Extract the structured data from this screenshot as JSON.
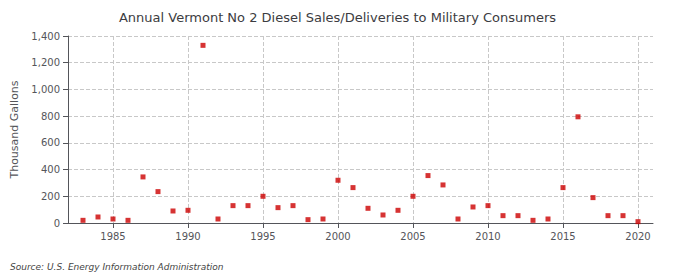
{
  "chart_data": {
    "type": "scatter",
    "title": "Annual Vermont No 2 Diesel Sales/Deliveries to Military Consumers",
    "ylabel": "Thousand Gallons",
    "annotations": [
      "Source: U.S. Energy Information Administration"
    ],
    "x": [
      1983,
      1984,
      1985,
      1986,
      1987,
      1988,
      1989,
      1990,
      1991,
      1992,
      1993,
      1994,
      1995,
      1996,
      1997,
      1998,
      1999,
      2000,
      2001,
      2002,
      2003,
      2004,
      2005,
      2006,
      2007,
      2008,
      2009,
      2010,
      2011,
      2012,
      2013,
      2014,
      2015,
      2016,
      2017,
      2018,
      2019,
      2020
    ],
    "values": [
      20,
      45,
      30,
      20,
      345,
      235,
      90,
      95,
      1330,
      30,
      130,
      130,
      200,
      115,
      130,
      25,
      30,
      320,
      265,
      110,
      60,
      95,
      200,
      355,
      285,
      30,
      120,
      130,
      55,
      55,
      20,
      30,
      265,
      795,
      190,
      55,
      55,
      10
    ],
    "color": "#cc0000",
    "marker": "square",
    "xlim": [
      1982,
      2021
    ],
    "xticks": [
      1985,
      1990,
      1995,
      2000,
      2005,
      2010,
      2015,
      2020
    ],
    "ylim": [
      0,
      1400
    ],
    "yticks": [
      0,
      200,
      400,
      600,
      {
        "value": 800,
        "label": "800"
      },
      {
        "value": 1000,
        "label": "1,000"
      },
      {
        "value": 1200,
        "label": "1,200"
      },
      {
        "value": 1400,
        "label": "1,400"
      }
    ],
    "grid": true
  }
}
